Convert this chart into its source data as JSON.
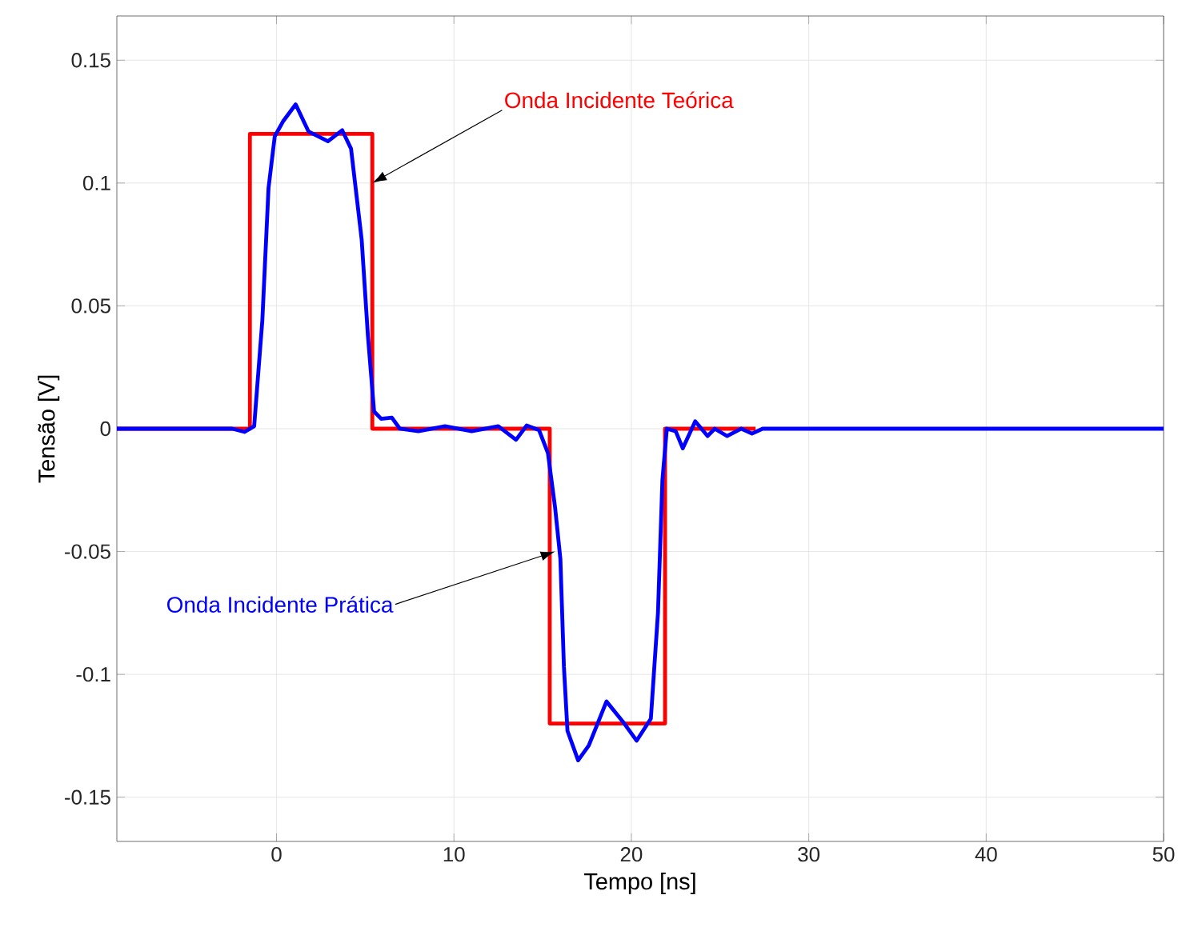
{
  "chart_data": {
    "type": "line",
    "xlabel": "Tempo  [ns]",
    "ylabel": "Tensão [V]",
    "xlim": [
      -9,
      50
    ],
    "ylim": [
      -0.168,
      0.168
    ],
    "xticks": [
      0,
      10,
      20,
      30,
      40,
      50
    ],
    "yticks": [
      -0.15,
      -0.1,
      -0.05,
      0,
      0.05,
      0.1,
      0.15
    ],
    "grid": true,
    "marker": "none",
    "line_style": "solid",
    "series": [
      {
        "color": "#ff0000",
        "x": [
          -9,
          -1.5,
          -1.5,
          5.4,
          5.4,
          15.4,
          15.4,
          21.9,
          21.9,
          27
        ],
        "values": [
          0,
          0,
          0.12,
          0.12,
          0,
          0,
          -0.12,
          -0.12,
          0,
          0
        ]
      },
      {
        "color": "#0000ff",
        "x": [
          -9,
          -2.5,
          -1.8,
          -1.26,
          -0.8,
          -0.45,
          -0.1,
          0.36,
          1.08,
          1.8,
          2.9,
          3.7,
          4.2,
          4.8,
          5.15,
          5.5,
          5.9,
          6.5,
          6.95,
          8,
          9.5,
          11,
          12.5,
          13.5,
          14.1,
          14.8,
          15.3,
          15.7,
          16.0,
          16.2,
          16.4,
          17.0,
          17.6,
          18.6,
          19.6,
          20.3,
          21.1,
          21.5,
          21.75,
          22.0,
          22.5,
          22.9,
          23.6,
          24.3,
          24.7,
          25.4,
          26.2,
          26.8,
          27.4,
          50
        ],
        "values": [
          0,
          0,
          -0.0013,
          0.001,
          0.044,
          0.098,
          0.119,
          0.125,
          0.132,
          0.121,
          0.117,
          0.1215,
          0.114,
          0.077,
          0.038,
          0.007,
          0.004,
          0.0045,
          0,
          -0.001,
          0.001,
          -0.001,
          0.001,
          -0.0045,
          0.0013,
          -0.0006,
          -0.01,
          -0.032,
          -0.053,
          -0.097,
          -0.123,
          -0.135,
          -0.129,
          -0.111,
          -0.12,
          -0.127,
          -0.118,
          -0.075,
          -0.021,
          0,
          -0.001,
          -0.008,
          0.003,
          -0.003,
          0,
          -0.003,
          0,
          -0.002,
          0,
          0
        ]
      }
    ],
    "annotations": [
      {
        "text": "Onda Incidente Teórica",
        "x": 5.4,
        "y": 0.1
      },
      {
        "text": "Onda Incidente Prática",
        "x": 15.7,
        "y": -0.05
      }
    ]
  }
}
